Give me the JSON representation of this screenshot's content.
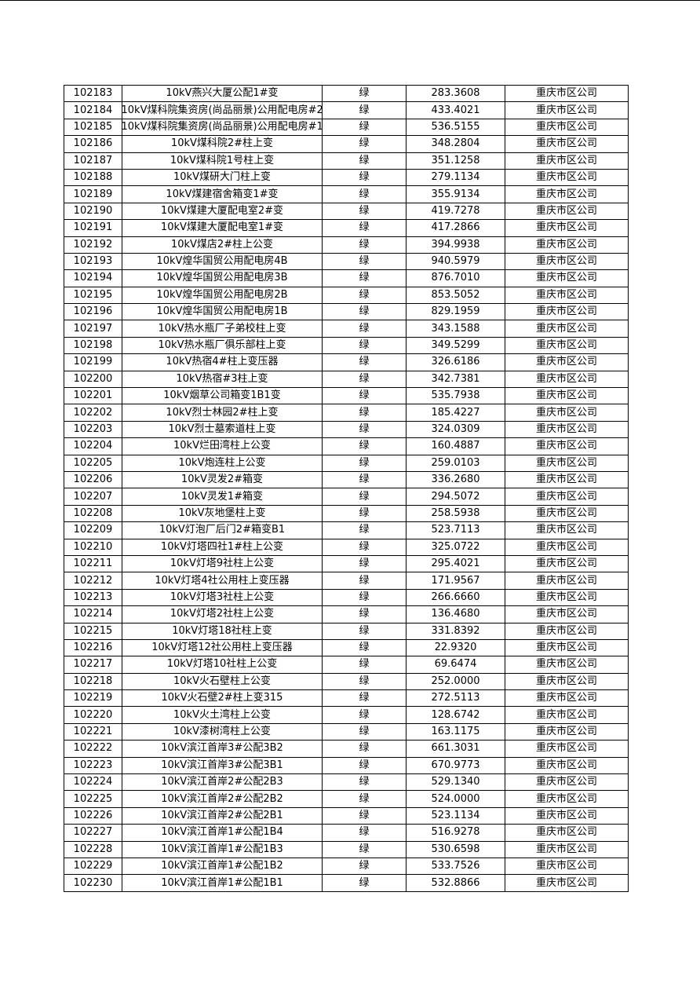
{
  "table": {
    "rows": [
      [
        "102183",
        "10kV燕兴大厦公配1#变",
        "绿",
        "283.3608",
        "重庆市区公司"
      ],
      [
        "102184",
        "10kV煤科院集资房(尚品丽景)公用配电房#2",
        "绿",
        "433.4021",
        "重庆市区公司"
      ],
      [
        "102185",
        "10kV煤科院集资房(尚品丽景)公用配电房#1",
        "绿",
        "536.5155",
        "重庆市区公司"
      ],
      [
        "102186",
        "10kV煤科院2#柱上变",
        "绿",
        "348.2804",
        "重庆市区公司"
      ],
      [
        "102187",
        "10kV煤科院1号柱上变",
        "绿",
        "351.1258",
        "重庆市区公司"
      ],
      [
        "102188",
        "10kV煤研大门柱上变",
        "绿",
        "279.1134",
        "重庆市区公司"
      ],
      [
        "102189",
        "10kV煤建宿舍箱变1#变",
        "绿",
        "355.9134",
        "重庆市区公司"
      ],
      [
        "102190",
        "10kV煤建大厦配电室2#变",
        "绿",
        "419.7278",
        "重庆市区公司"
      ],
      [
        "102191",
        "10kV煤建大厦配电室1#变",
        "绿",
        "417.2866",
        "重庆市区公司"
      ],
      [
        "102192",
        "10kV煤店2#柱上公变",
        "绿",
        "394.9938",
        "重庆市区公司"
      ],
      [
        "102193",
        "10kV煌华国贸公用配电房4B",
        "绿",
        "940.5979",
        "重庆市区公司"
      ],
      [
        "102194",
        "10kV煌华国贸公用配电房3B",
        "绿",
        "876.7010",
        "重庆市区公司"
      ],
      [
        "102195",
        "10kV煌华国贸公用配电房2B",
        "绿",
        "853.5052",
        "重庆市区公司"
      ],
      [
        "102196",
        "10kV煌华国贸公用配电房1B",
        "绿",
        "829.1959",
        "重庆市区公司"
      ],
      [
        "102197",
        "10kV热水瓶厂子弟校柱上变",
        "绿",
        "343.1588",
        "重庆市区公司"
      ],
      [
        "102198",
        "10kV热水瓶厂俱乐部柱上变",
        "绿",
        "349.5299",
        "重庆市区公司"
      ],
      [
        "102199",
        "10kV热宿4#柱上变压器",
        "绿",
        "326.6186",
        "重庆市区公司"
      ],
      [
        "102200",
        "10kV热宿#3柱上变",
        "绿",
        "342.7381",
        "重庆市区公司"
      ],
      [
        "102201",
        "10kV烟草公司箱变1B1变",
        "绿",
        "535.7938",
        "重庆市区公司"
      ],
      [
        "102202",
        "10kV烈士林园2#柱上变",
        "绿",
        "185.4227",
        "重庆市区公司"
      ],
      [
        "102203",
        "10kV烈士墓索道柱上变",
        "绿",
        "324.0309",
        "重庆市区公司"
      ],
      [
        "102204",
        "10kV烂田湾柱上公变",
        "绿",
        "160.4887",
        "重庆市区公司"
      ],
      [
        "102205",
        "10kV炮连柱上公变",
        "绿",
        "259.0103",
        "重庆市区公司"
      ],
      [
        "102206",
        "10kV灵发2#箱变",
        "绿",
        "336.2680",
        "重庆市区公司"
      ],
      [
        "102207",
        "10kV灵发1#箱变",
        "绿",
        "294.5072",
        "重庆市区公司"
      ],
      [
        "102208",
        "10kV灰地堡柱上变",
        "绿",
        "258.5938",
        "重庆市区公司"
      ],
      [
        "102209",
        "10kV灯泡厂后门2#箱变B1",
        "绿",
        "523.7113",
        "重庆市区公司"
      ],
      [
        "102210",
        "10kV灯塔四社1#柱上公变",
        "绿",
        "325.0722",
        "重庆市区公司"
      ],
      [
        "102211",
        "10kV灯塔9社柱上公变",
        "绿",
        "295.4021",
        "重庆市区公司"
      ],
      [
        "102212",
        "10kV灯塔4社公用柱上变压器",
        "绿",
        "171.9567",
        "重庆市区公司"
      ],
      [
        "102213",
        "10kV灯塔3社柱上公变",
        "绿",
        "266.6660",
        "重庆市区公司"
      ],
      [
        "102214",
        "10kV灯塔2社柱上公变",
        "绿",
        "136.4680",
        "重庆市区公司"
      ],
      [
        "102215",
        "10kV灯塔18社柱上变",
        "绿",
        "331.8392",
        "重庆市区公司"
      ],
      [
        "102216",
        "10kV灯塔12社公用柱上变压器",
        "绿",
        "22.9320",
        "重庆市区公司"
      ],
      [
        "102217",
        "10kV灯塔10社柱上公变",
        "绿",
        "69.6474",
        "重庆市区公司"
      ],
      [
        "102218",
        "10kV火石壁柱上公变",
        "绿",
        "252.0000",
        "重庆市区公司"
      ],
      [
        "102219",
        "10kV火石壁2#柱上变315",
        "绿",
        "272.5113",
        "重庆市区公司"
      ],
      [
        "102220",
        "10kV火土湾柱上公变",
        "绿",
        "128.6742",
        "重庆市区公司"
      ],
      [
        "102221",
        "10kV漆树湾柱上公变",
        "绿",
        "163.1175",
        "重庆市区公司"
      ],
      [
        "102222",
        "10kV滨江首岸3#公配3B2",
        "绿",
        "661.3031",
        "重庆市区公司"
      ],
      [
        "102223",
        "10kV滨江首岸3#公配3B1",
        "绿",
        "670.9773",
        "重庆市区公司"
      ],
      [
        "102224",
        "10kV滨江首岸2#公配2B3",
        "绿",
        "529.1340",
        "重庆市区公司"
      ],
      [
        "102225",
        "10kV滨江首岸2#公配2B2",
        "绿",
        "524.0000",
        "重庆市区公司"
      ],
      [
        "102226",
        "10kV滨江首岸2#公配2B1",
        "绿",
        "523.1134",
        "重庆市区公司"
      ],
      [
        "102227",
        "10kV滨江首岸1#公配1B4",
        "绿",
        "516.9278",
        "重庆市区公司"
      ],
      [
        "102228",
        "10kV滨江首岸1#公配1B3",
        "绿",
        "530.6598",
        "重庆市区公司"
      ],
      [
        "102229",
        "10kV滨江首岸1#公配1B2",
        "绿",
        "533.7526",
        "重庆市区公司"
      ],
      [
        "102230",
        "10kV滨江首岸1#公配1B1",
        "绿",
        "532.8866",
        "重庆市区公司"
      ]
    ]
  }
}
